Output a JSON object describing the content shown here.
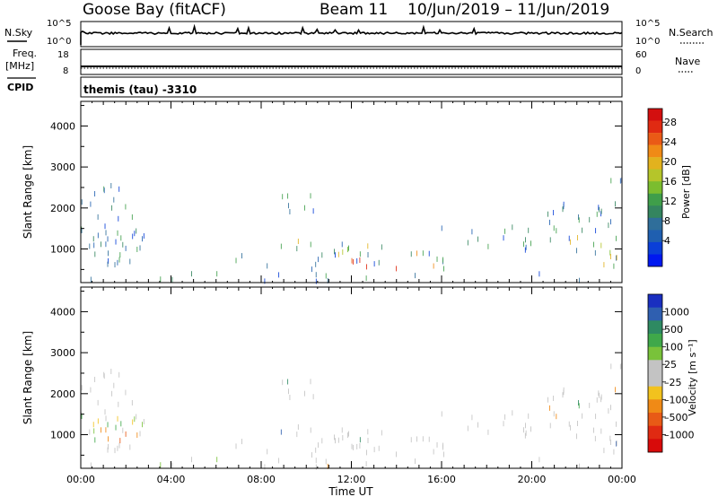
{
  "header": {
    "station": "Goose Bay (fitACF)",
    "beam": "Beam 11",
    "date_range": "10/Jun/2019 – 11/Jun/2019"
  },
  "side_labels": {
    "nsky": "N.Sky",
    "freq_line1": "Freq.",
    "freq_line2": "[MHz]",
    "cpid": "CPID",
    "nsearch": "N.Search",
    "nave": "Nave"
  },
  "top_panels": {
    "noise": {
      "left_ticks": [
        "10^5",
        "10^0"
      ],
      "right_ticks": [
        "10^5",
        "10^0"
      ]
    },
    "freq": {
      "left_ticks": [
        "18",
        "8"
      ],
      "right_ticks": [
        "60",
        "0"
      ]
    },
    "cpid_text": "themis (tau) -3310"
  },
  "chart_data": [
    {
      "type": "heatmap",
      "name": "power",
      "ylabel": "Slant Range [km]",
      "ylim": [
        180,
        4600
      ],
      "yticks": [
        "1000",
        "2000",
        "3000",
        "4000"
      ],
      "xticks": [
        "00:00",
        "04:00",
        "08:00",
        "12:00",
        "16:00",
        "20:00",
        "00:00"
      ],
      "colorbar": {
        "label": "Power [dB]",
        "ticks": [
          "4",
          "8",
          "12",
          "16",
          "20",
          "24",
          "28"
        ],
        "colors": [
          "#0018f0",
          "#0a3fd8",
          "#1f5fb0",
          "#2f6e9a",
          "#34855f",
          "#3f9e4a",
          "#7bbd2f",
          "#b5c52a",
          "#e2b21e",
          "#f08a16",
          "#ea5a16",
          "#e02a12",
          "#d30f0f"
        ]
      }
    },
    {
      "type": "heatmap",
      "name": "velocity",
      "ylabel": "Slant Range [km]",
      "ylim": [
        180,
        4600
      ],
      "yticks": [
        "1000",
        "2000",
        "3000",
        "4000"
      ],
      "xticks": [
        "00:00",
        "04:00",
        "08:00",
        "12:00",
        "16:00",
        "20:00",
        "00:00"
      ],
      "xlabel": "Time UT",
      "colorbar": {
        "label": "Velocity [m s⁻¹]",
        "ticks": [
          "1000",
          "500",
          "100",
          "25",
          "–25",
          "–100",
          "–500",
          "–1000"
        ],
        "colors": [
          "#1a2fc0",
          "#2f5fb0",
          "#2e8a62",
          "#3fa84a",
          "#79c23a",
          "#c3c3c3",
          "#c3c3c3",
          "#f2c21e",
          "#f08a16",
          "#e85a16",
          "#e02a12",
          "#d80a0a"
        ]
      }
    }
  ]
}
